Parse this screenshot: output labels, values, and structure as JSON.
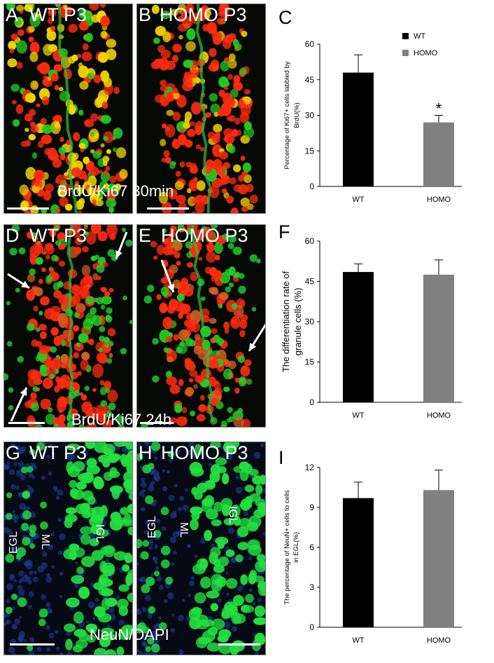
{
  "panels": {
    "A": {
      "letter": "A",
      "title": "WT P3"
    },
    "B": {
      "letter": "B",
      "title": "HOMO P3"
    },
    "C": {
      "letter": "C"
    },
    "D": {
      "letter": "D",
      "title": "WT P3"
    },
    "E": {
      "letter": "E",
      "title": "HOMO P3"
    },
    "F": {
      "letter": "F"
    },
    "G": {
      "letter": "G",
      "title": "WT P3"
    },
    "H": {
      "letter": "H",
      "title": "HOMO P3"
    },
    "I": {
      "letter": "I"
    }
  },
  "overlays": {
    "row1": "BrdU/Ki67 30min",
    "row2": "BrdU/Ki67 24h",
    "row3": "NeuN/DAPI"
  },
  "layer_labels": {
    "G": {
      "egl": "EGL",
      "ml": "ML",
      "igl": "IGL"
    },
    "H": {
      "egl": "EGL",
      "ml": "ML",
      "igl": "IGL"
    }
  },
  "colors": {
    "wt": "#000000",
    "homo": "#808080",
    "brdu": "#ff2a10",
    "ki67": "#22cc22",
    "dapi": "#1f3a9a",
    "neun": "#22e040"
  },
  "chart_data": [
    {
      "type": "bar",
      "panel": "C",
      "categories": [
        "WT",
        "HOMO"
      ],
      "values": [
        48,
        27
      ],
      "errors": [
        7.5,
        3
      ],
      "ylabel_lines": [
        "Percentage of Ki67+ cells labbled by",
        "BrdU(%)"
      ],
      "ylim": [
        0,
        60
      ],
      "yticks": [
        "0",
        "15",
        "30",
        "45",
        "60"
      ],
      "legend": [
        "WT",
        "HOMO"
      ],
      "significance": [
        "",
        "*"
      ]
    },
    {
      "type": "bar",
      "panel": "F",
      "categories": [
        "WT",
        "HOMO"
      ],
      "values": [
        48.5,
        47.5
      ],
      "errors": [
        3,
        5.5
      ],
      "ylabel_lines": [
        "The differentiation  rate of",
        "granule cells (%)"
      ],
      "ylim": [
        0,
        60
      ],
      "yticks": [
        "0",
        "15",
        "30",
        "45",
        "60"
      ],
      "legend": [],
      "significance": [
        "",
        ""
      ]
    },
    {
      "type": "bar",
      "panel": "I",
      "categories": [
        "WT",
        "HOMO"
      ],
      "values": [
        9.7,
        10.3
      ],
      "errors": [
        1.2,
        1.5
      ],
      "ylabel_lines": [
        "The percentage  of NeuN+ cells to cells",
        "in EGL(%)"
      ],
      "ylim": [
        0,
        12
      ],
      "yticks": [
        "0",
        "3",
        "6",
        "9",
        "12"
      ],
      "legend": [],
      "significance": [
        "",
        ""
      ]
    }
  ]
}
